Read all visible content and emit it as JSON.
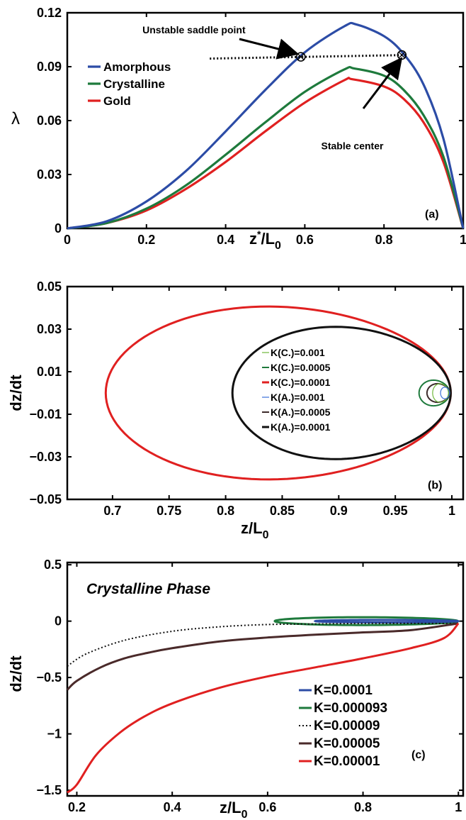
{
  "chart_data": [
    {
      "panel_tag": "(a)",
      "type": "line",
      "xlabel": "z*/L0",
      "xlabel_main": "z",
      "xlabel_sup": "*",
      "xlabel_mid": "/L",
      "xlabel_sub": "0",
      "ylabel": "λ",
      "xlim": [
        0,
        1
      ],
      "ylim": [
        0,
        0.12
      ],
      "xticks": [
        0,
        0.2,
        0.4,
        0.6,
        0.8,
        1
      ],
      "xtick_labels": [
        "0",
        "0.2",
        "0.4",
        "0.6",
        "0.8",
        "1"
      ],
      "yticks": [
        0,
        0.03,
        0.06,
        0.09,
        0.12
      ],
      "ytick_labels": [
        "0",
        "0.03",
        "0.06",
        "0.09",
        "0.12"
      ],
      "legend_position": "upper-left",
      "series": [
        {
          "name": "Amorphous",
          "color": "#2c4ca6",
          "peak_x": 0.73,
          "peak_y": 0.1135,
          "x": [
            0,
            0.1,
            0.2,
            0.3,
            0.4,
            0.5,
            0.6,
            0.7,
            0.73,
            0.8,
            0.85,
            0.9,
            0.95,
            1.0
          ],
          "y": [
            0,
            0.004,
            0.015,
            0.032,
            0.054,
            0.077,
            0.098,
            0.1125,
            0.1135,
            0.107,
            0.097,
            0.08,
            0.05,
            0
          ]
        },
        {
          "name": "Crystalline",
          "color": "#1e7a3c",
          "peak_x": 0.725,
          "peak_y": 0.089,
          "x": [
            0,
            0.1,
            0.2,
            0.3,
            0.4,
            0.5,
            0.6,
            0.7,
            0.725,
            0.8,
            0.85,
            0.9,
            0.95,
            1.0
          ],
          "y": [
            0,
            0.003,
            0.011,
            0.024,
            0.041,
            0.059,
            0.076,
            0.0885,
            0.089,
            0.085,
            0.077,
            0.063,
            0.04,
            0
          ]
        },
        {
          "name": "Gold",
          "color": "#e02020",
          "peak_x": 0.72,
          "peak_y": 0.083,
          "x": [
            0,
            0.1,
            0.2,
            0.3,
            0.4,
            0.5,
            0.6,
            0.7,
            0.72,
            0.8,
            0.85,
            0.9,
            0.95,
            1.0
          ],
          "y": [
            0,
            0.003,
            0.01,
            0.022,
            0.037,
            0.054,
            0.07,
            0.0825,
            0.083,
            0.079,
            0.072,
            0.059,
            0.037,
            0
          ]
        }
      ],
      "reference_line": {
        "style": "dotted",
        "x": [
          0.36,
          0.86
        ],
        "y": [
          0.0945,
          0.0965
        ]
      },
      "markers": [
        {
          "x": 0.59,
          "y": 0.0955
        },
        {
          "x": 0.845,
          "y": 0.0965
        }
      ],
      "annotations": [
        {
          "text": "Unstable saddle point",
          "x": 0.32,
          "y": 0.1085,
          "arrow_to_x": 0.575,
          "arrow_to_y": 0.0975
        },
        {
          "text": "Stable center",
          "x": 0.72,
          "y": 0.044,
          "arrow_to_x": 0.84,
          "arrow_to_y": 0.0935
        }
      ]
    },
    {
      "panel_tag": "(b)",
      "type": "line",
      "xlabel": "z/L0",
      "xlabel_main": "z/L",
      "xlabel_sub": "0",
      "ylabel": "dz/dt",
      "xlim": [
        0.66,
        1.01
      ],
      "ylim": [
        -0.05,
        0.05
      ],
      "xticks": [
        0.7,
        0.75,
        0.8,
        0.85,
        0.9,
        0.95,
        1
      ],
      "xtick_labels": [
        "0.7",
        "0.75",
        "0.8",
        "0.85",
        "0.9",
        "0.95",
        "1"
      ],
      "yticks": [
        -0.05,
        -0.03,
        -0.01,
        0.01,
        0.03,
        0.05
      ],
      "ytick_labels": [
        "−0.05",
        "−0.03",
        "−0.01",
        "0.01",
        "0.03",
        "0.05"
      ],
      "legend_position": "center-right",
      "series": [
        {
          "name": "K(C.)=0.001",
          "color": "#6fb83a",
          "width": 1.2,
          "orbit": {
            "x_left": 0.983,
            "x_right": 0.997,
            "y_half": 0.0045
          }
        },
        {
          "name": "K(C.)=0.0005",
          "color": "#1e7a3c",
          "width": 2,
          "orbit": {
            "x_left": 0.971,
            "x_right": 0.998,
            "y_half": 0.0062
          }
        },
        {
          "name": "K(C.)=0.0001",
          "color": "#e02020",
          "width": 3,
          "orbit": {
            "x_left": 0.694,
            "x_right": 0.999,
            "y_half": 0.0418
          }
        },
        {
          "name": "K(A.)=0.001",
          "color": "#3a6fd8",
          "width": 1.2,
          "orbit": {
            "x_left": 0.99,
            "x_right": 0.998,
            "y_half": 0.0028
          }
        },
        {
          "name": "K(A.)=0.0005",
          "color": "#3d2b2b",
          "width": 2,
          "orbit": {
            "x_left": 0.978,
            "x_right": 0.998,
            "y_half": 0.0045
          }
        },
        {
          "name": "K(A.)=0.0001",
          "color": "#111111",
          "width": 3,
          "orbit": {
            "x_left": 0.806,
            "x_right": 0.999,
            "y_half": 0.032
          }
        }
      ]
    },
    {
      "panel_tag": "(c)",
      "type": "line",
      "title": "Crystalline Phase",
      "xlabel": "z/L0",
      "xlabel_main": "z/L",
      "xlabel_sub": "0",
      "ylabel": "dz/dt",
      "xlim": [
        0.18,
        1.01
      ],
      "ylim": [
        -1.55,
        0.52
      ],
      "xticks": [
        0.2,
        0.4,
        0.6,
        0.8,
        1
      ],
      "xtick_labels": [
        "0.2",
        "0.4",
        "0.6",
        "0.8",
        "1"
      ],
      "yticks": [
        -1.5,
        -1,
        -0.5,
        0,
        0.5
      ],
      "ytick_labels": [
        "−1.5",
        "−1",
        "−0.5",
        "0",
        "0.5"
      ],
      "legend_position": "lower-right",
      "series": [
        {
          "name": "K=0.0001",
          "color": "#2c4ca6",
          "style": "solid",
          "width": 3,
          "orbit": {
            "x_left": 0.7,
            "x_right": 0.999,
            "y_half": 0.011
          }
        },
        {
          "name": "K=0.000093",
          "color": "#1e7a3c",
          "style": "solid",
          "width": 3,
          "orbit": {
            "x_left": 0.615,
            "x_right": 0.999,
            "y_half": 0.036
          }
        },
        {
          "name": "K=0.00009",
          "color": "#111111",
          "style": "dotted",
          "width": 2,
          "x": [
            0.18,
            0.22,
            0.3,
            0.4,
            0.5,
            0.6,
            0.7,
            0.8,
            0.9,
            1.0
          ],
          "y": [
            -0.4,
            -0.29,
            -0.17,
            -0.09,
            -0.05,
            -0.03,
            -0.025,
            -0.02,
            -0.02,
            -0.02
          ]
        },
        {
          "name": "K=0.00005",
          "color": "#4a2a2a",
          "style": "solid",
          "width": 3,
          "x": [
            0.18,
            0.2,
            0.25,
            0.3,
            0.35,
            0.4,
            0.5,
            0.6,
            0.7,
            0.8,
            0.9,
            1.0
          ],
          "y": [
            -0.61,
            -0.53,
            -0.41,
            -0.33,
            -0.28,
            -0.24,
            -0.18,
            -0.145,
            -0.12,
            -0.1,
            -0.08,
            -0.02
          ]
        },
        {
          "name": "K=0.00001",
          "color": "#e02020",
          "style": "solid",
          "width": 3,
          "x": [
            0.18,
            0.2,
            0.24,
            0.29,
            0.34,
            0.4,
            0.5,
            0.6,
            0.7,
            0.8,
            0.9,
            0.97,
            1.0
          ],
          "y": [
            -1.52,
            -1.45,
            -1.19,
            -0.99,
            -0.85,
            -0.73,
            -0.59,
            -0.49,
            -0.41,
            -0.33,
            -0.24,
            -0.15,
            -0.02
          ]
        }
      ]
    }
  ]
}
